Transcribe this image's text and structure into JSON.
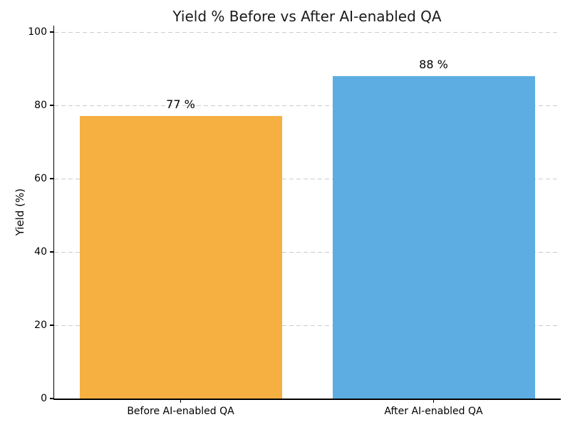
{
  "chart_data": {
    "type": "bar",
    "title": "Yield % Before vs After AI-enabled QA",
    "xlabel": "",
    "ylabel": "Yield (%)",
    "categories": [
      "Before AI-enabled QA",
      "After AI-enabled QA"
    ],
    "values": [
      77,
      88
    ],
    "value_labels": [
      "77 %",
      "88 %"
    ],
    "bar_colors": [
      "#F5B041",
      "#5DADE2"
    ],
    "ylim": [
      0,
      100
    ],
    "yticks": [
      0,
      20,
      40,
      60,
      80,
      100
    ],
    "grid": {
      "horizontal": true,
      "style": "dashed",
      "color": "#cccccc"
    },
    "legend": "none",
    "background": "#ffffff",
    "axis_color": "#000000",
    "text_color": "#000000"
  }
}
